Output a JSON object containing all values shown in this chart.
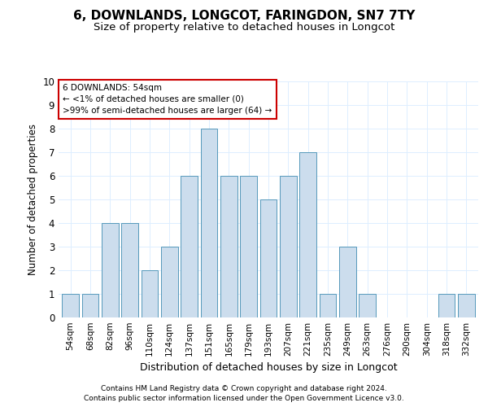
{
  "title": "6, DOWNLANDS, LONGCOT, FARINGDON, SN7 7TY",
  "subtitle": "Size of property relative to detached houses in Longcot",
  "xlabel": "Distribution of detached houses by size in Longcot",
  "ylabel": "Number of detached properties",
  "categories": [
    "54sqm",
    "68sqm",
    "82sqm",
    "96sqm",
    "110sqm",
    "124sqm",
    "137sqm",
    "151sqm",
    "165sqm",
    "179sqm",
    "193sqm",
    "207sqm",
    "221sqm",
    "235sqm",
    "249sqm",
    "263sqm",
    "276sqm",
    "290sqm",
    "304sqm",
    "318sqm",
    "332sqm"
  ],
  "values": [
    1,
    1,
    4,
    4,
    2,
    3,
    6,
    8,
    6,
    6,
    5,
    6,
    7,
    1,
    3,
    1,
    0,
    0,
    0,
    1,
    1
  ],
  "bar_color_normal": "#ccdded",
  "bar_edge_color": "#5599bb",
  "annotation_text": "6 DOWNLANDS: 54sqm\n← <1% of detached houses are smaller (0)\n>99% of semi-detached houses are larger (64) →",
  "annotation_box_color": "#ffffff",
  "annotation_box_edge": "#cc0000",
  "ylim": [
    0,
    10
  ],
  "yticks": [
    0,
    1,
    2,
    3,
    4,
    5,
    6,
    7,
    8,
    9,
    10
  ],
  "footnote1": "Contains HM Land Registry data © Crown copyright and database right 2024.",
  "footnote2": "Contains public sector information licensed under the Open Government Licence v3.0.",
  "grid_color": "#ddeeff",
  "background_color": "#ffffff",
  "title_fontsize": 11,
  "subtitle_fontsize": 9.5,
  "xlabel_fontsize": 9,
  "ylabel_fontsize": 8.5,
  "tick_fontsize": 7.5,
  "annotation_fontsize": 7.5,
  "footnote_fontsize": 6.5
}
